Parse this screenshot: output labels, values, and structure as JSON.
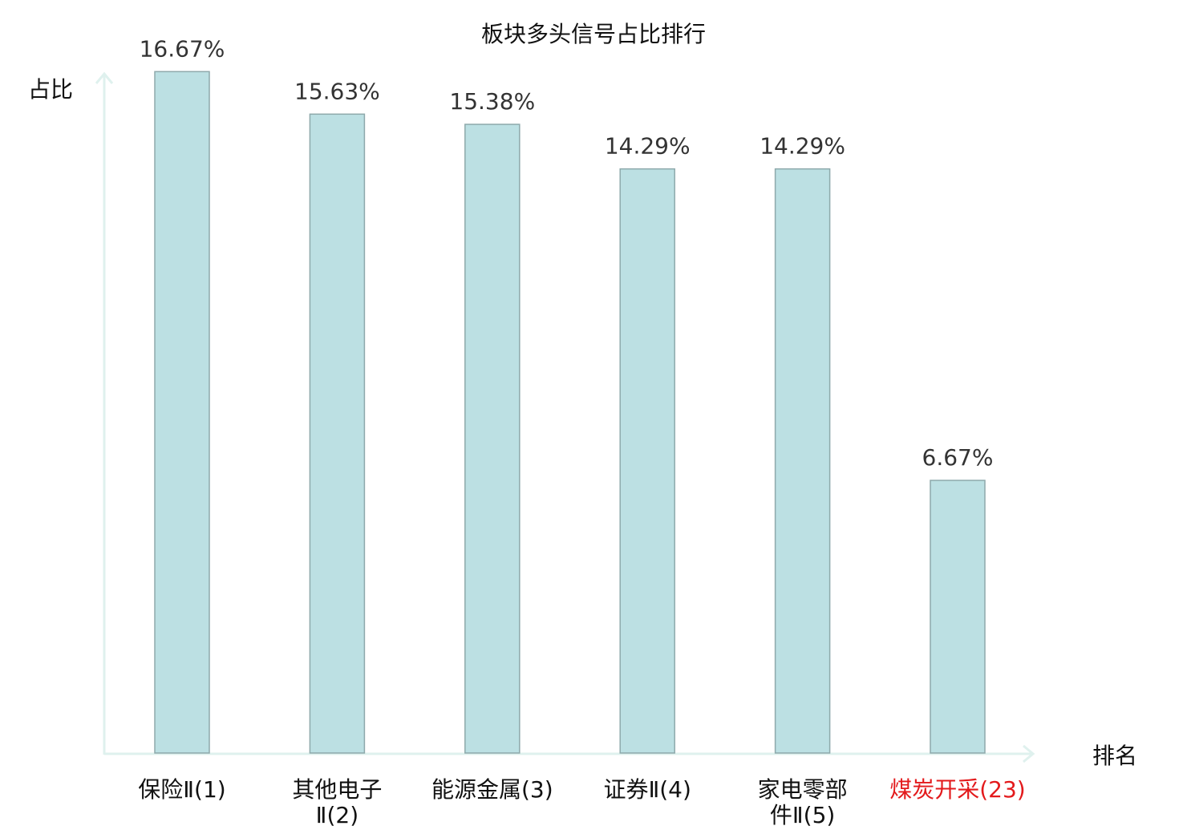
{
  "chart_data": {
    "type": "bar",
    "title": "板块多头信号占比排行",
    "ylabel": "占比",
    "xlabel": "排名",
    "categories": [
      {
        "name": "保险Ⅱ",
        "rank": "(1)",
        "line1": "保险Ⅱ(1)",
        "line2": "",
        "highlight": false
      },
      {
        "name": "其他电子Ⅱ",
        "rank": "(2)",
        "line1": "其他电子",
        "line2": "Ⅱ(2)",
        "highlight": false
      },
      {
        "name": "能源金属",
        "rank": "(3)",
        "line1": "能源金属(3)",
        "line2": "",
        "highlight": false
      },
      {
        "name": "证券Ⅱ",
        "rank": "(4)",
        "line1": "证券Ⅱ(4)",
        "line2": "",
        "highlight": false
      },
      {
        "name": "家电零部件Ⅱ",
        "rank": "(5)",
        "line1": "家电零部",
        "line2": "件Ⅱ(5)",
        "highlight": false
      },
      {
        "name": "煤炭开采",
        "rank": "(23)",
        "line1": "煤炭开采(23)",
        "line2": "",
        "highlight": true
      }
    ],
    "values": [
      16.67,
      15.63,
      15.38,
      14.29,
      14.29,
      6.67
    ],
    "value_labels": [
      "16.67%",
      "15.63%",
      "15.38%",
      "14.29%",
      "14.29%",
      "6.67%"
    ],
    "ylim": [
      0,
      17.5
    ],
    "grid": false,
    "legend": "none",
    "colors": {
      "bar_fill": "#bce0e3",
      "bar_stroke": "#8ea9ab",
      "axis": "#dff1ee",
      "text": "#333333",
      "highlight": "#e31a1c"
    }
  }
}
